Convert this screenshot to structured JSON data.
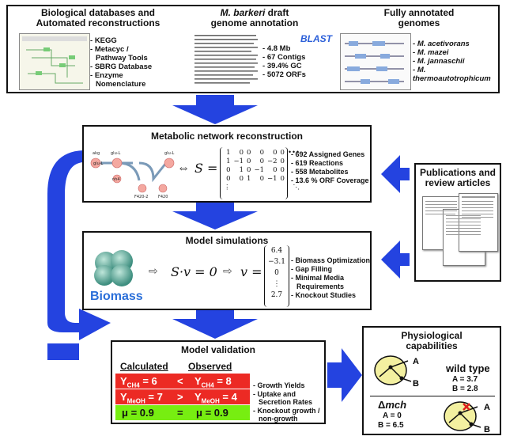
{
  "top": {
    "bio_db": {
      "title_line1": "Biological databases and",
      "title_line2": "Automated reconstructions",
      "items": [
        "KEGG",
        "Metacyc /",
        "Pathway Tools",
        "SBRG Database",
        "Enzyme",
        "Nomenclature"
      ]
    },
    "genome": {
      "title_italic": "M. barkeri",
      "title_rest": " draft",
      "title_line2": "genome annotation",
      "stats": [
        "4.8 Mb",
        "67 Contigs",
        "39.4% GC",
        "5072 ORFs"
      ]
    },
    "annotated": {
      "title_line1": "Fully annotated",
      "title_line2": "genomes",
      "blast": "BLAST",
      "species": [
        "M. acetivorans",
        "M. mazei",
        "M. jannaschii",
        "M. thermoautotrophicum"
      ]
    }
  },
  "network": {
    "title": "Metabolic network reconstruction",
    "s_label": "S =",
    "equiv": "⇔",
    "matrix_rows": [
      [
        "1",
        "0",
        "0",
        "0",
        "0",
        "0",
        "•••"
      ],
      [
        "1",
        "−1",
        "0",
        "0",
        "−2",
        "0",
        ""
      ],
      [
        "0",
        "1",
        "0",
        "−1",
        "0",
        "0",
        ""
      ],
      [
        "0",
        "0",
        "1",
        "0",
        "−1",
        "0",
        ""
      ],
      [
        "⋮",
        "",
        "",
        "",
        "",
        "",
        "⋱"
      ]
    ],
    "stats": [
      "692 Assigned Genes",
      "619 Reactions",
      "558 Metabolites",
      "13.6 % ORF Coverage"
    ],
    "nodes": [
      "akg",
      "glu-L",
      "glu-L",
      "nh4",
      "glu-L",
      "F420-2",
      "F420"
    ]
  },
  "publications": {
    "title_line1": "Publications and",
    "title_line2": "review articles"
  },
  "simulation": {
    "title": "Model simulations",
    "biomass": "Biomass",
    "equation1": "S·v = 0",
    "v_label": "v =",
    "vector": [
      "6.4",
      "−3.1",
      "0",
      "⋮",
      "2.7"
    ],
    "items": [
      "Biomass Optimization",
      "Gap Filling",
      "Minimal Media",
      "Requirements",
      "Knockout Studies"
    ]
  },
  "validation": {
    "title": "Model validation",
    "calc_header": "Calculated",
    "obs_header": "Observed",
    "rows": [
      {
        "calc": "Y",
        "calc_sub": "CH4",
        "calc_val": "= 6",
        "op": "<",
        "obs": "Y",
        "obs_sub": "CH4",
        "obs_val": "= 8"
      },
      {
        "calc": "Y",
        "calc_sub": "MeOH",
        "calc_val": "= 7",
        "op": ">",
        "obs": "Y",
        "obs_sub": "MeOH",
        "obs_val": "= 4"
      },
      {
        "calc": "μ = 0.9",
        "op": "=",
        "obs": "μ = 0.9"
      }
    ],
    "items": [
      "Growth Yields",
      "Uptake and",
      "Secretion Rates",
      "Knockout growth /",
      "non-growth"
    ],
    "colors": {
      "red": "#ec2a24",
      "green": "#77ee11"
    }
  },
  "physiology": {
    "title_line1": "Physiological",
    "title_line2": "capabilities",
    "wt_label": "wild type",
    "wt_a": "A = 3.7",
    "wt_b": "B = 2.8",
    "mut_delta": "Δ",
    "mut_name": "mch",
    "mut_a": "A = 0",
    "mut_b": "B = 6.5",
    "node_a": "A",
    "node_b": "B"
  },
  "colors": {
    "arrow_blue": "#2443e0",
    "node_pink": "#f4a8a0"
  }
}
